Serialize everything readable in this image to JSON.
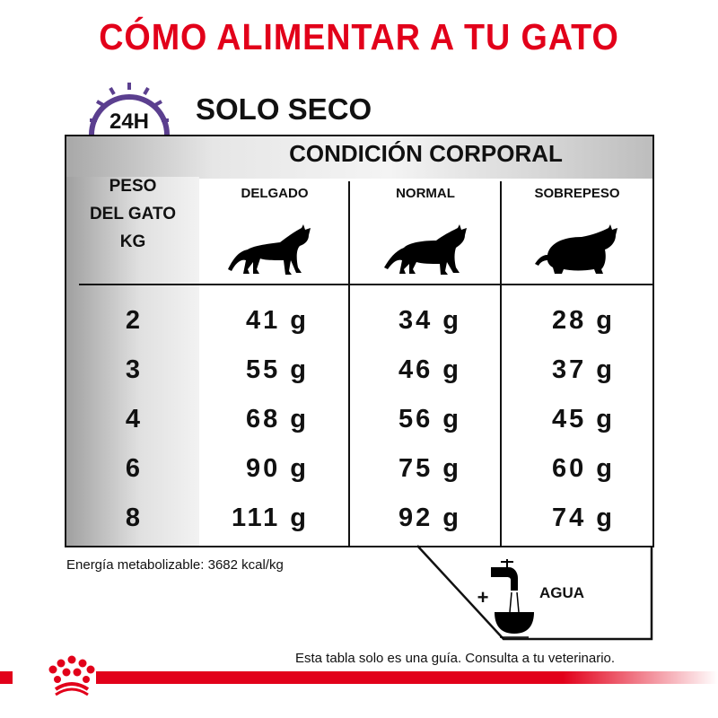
{
  "title": "CÓMO ALIMENTAR A TU GATO",
  "clock_label": "24H",
  "subtitle": "SOLO SECO",
  "table": {
    "group_header": "CONDICIÓN CORPORAL",
    "weight_header": [
      "PESO",
      "DEL GATO",
      "KG"
    ],
    "columns": [
      {
        "label": "DELGADO",
        "icon": "thin-cat-icon"
      },
      {
        "label": "NORMAL",
        "icon": "normal-cat-icon"
      },
      {
        "label": "SOBREPESO",
        "icon": "overweight-cat-icon"
      }
    ],
    "rows": [
      {
        "weight": "2",
        "values": [
          "41 g",
          "34 g",
          "28 g"
        ]
      },
      {
        "weight": "3",
        "values": [
          "55 g",
          "46 g",
          "37 g"
        ]
      },
      {
        "weight": "4",
        "values": [
          "68 g",
          "56 g",
          "45 g"
        ]
      },
      {
        "weight": "6",
        "values": [
          "90 g",
          "75 g",
          "60 g"
        ]
      },
      {
        "weight": "8",
        "values": [
          "111 g",
          "92 g",
          "74 g"
        ]
      }
    ]
  },
  "energy": "Energía metabolizable: 3682 kcal/kg",
  "water": {
    "plus": "+",
    "label": "AGUA",
    "icon": "water-tap-bowl-icon"
  },
  "disclaimer": "Esta tabla solo es una guía. Consulta a tu veterinario.",
  "colors": {
    "brand_red": "#e2001a",
    "clock_purple": "#5b3f8f"
  }
}
